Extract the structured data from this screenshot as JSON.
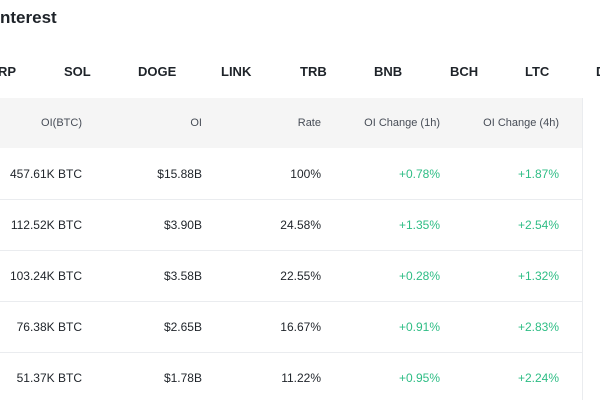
{
  "header": {
    "title": "nterest"
  },
  "tabs": [
    "RP",
    "SOL",
    "DOGE",
    "LINK",
    "TRB",
    "BNB",
    "BCH",
    "LTC",
    "D"
  ],
  "table": {
    "columns": [
      "OI(BTC)",
      "OI",
      "Rate",
      "OI Change (1h)",
      "OI Change (4h)"
    ],
    "rows": [
      [
        "457.61K BTC",
        "$15.88B",
        "100%",
        "+0.78%",
        "+1.87%"
      ],
      [
        "112.52K BTC",
        "$3.90B",
        "24.58%",
        "+1.35%",
        "+2.54%"
      ],
      [
        "103.24K BTC",
        "$3.58B",
        "22.55%",
        "+0.28%",
        "+1.32%"
      ],
      [
        "76.38K BTC",
        "$2.65B",
        "16.67%",
        "+0.91%",
        "+2.83%"
      ],
      [
        "51.37K BTC",
        "$1.78B",
        "11.22%",
        "+0.95%",
        "+2.24%"
      ]
    ]
  }
}
